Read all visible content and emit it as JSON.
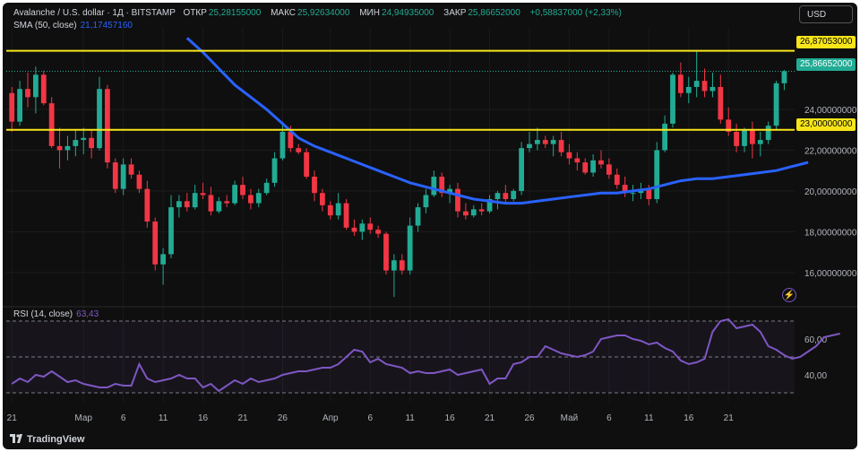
{
  "header": {
    "symbol": "Avalanche / U.S. dollar · 1Д · BITSTAMP",
    "open_label": "ОТКР",
    "open": "25,28155000",
    "high_label": "МАКС",
    "high": "25,92634000",
    "low_label": "МИН",
    "low": "24,94935000",
    "close_label": "ЗАКР",
    "close": "25,86652000",
    "change": "+0,58837000 (+2,33%)",
    "sma_label": "SMA (50, close)",
    "sma_value": "21,17457160"
  },
  "currency_button": "USD",
  "rsi_header": {
    "label": "RSI (14, close)",
    "value": "63,43"
  },
  "price_tags": {
    "level_high": "26,87053000",
    "last_price": "25,86652000",
    "level_low": "23,00000000"
  },
  "branding": "TradingView",
  "colors": {
    "up": "#22ab94",
    "down": "#f23645",
    "sma": "#2962ff",
    "rsi": "#7e57c2",
    "level": "#f7e51a",
    "bg": "#0f0f0f"
  },
  "chart_data": {
    "type": "candlestick",
    "symbol": "Avalanche / U.S. dollar",
    "interval": "1Д",
    "exchange": "BITSTAMP",
    "y_ticks": [
      "16,00000000",
      "18,00000000",
      "20,00000000",
      "22,00000000",
      "24,00000000"
    ],
    "ylim": [
      14.5,
      28
    ],
    "x_ticks": [
      {
        "label": "21",
        "day": 0
      },
      {
        "label": "Мар",
        "day": 9
      },
      {
        "label": "6",
        "day": 14
      },
      {
        "label": "11",
        "day": 19
      },
      {
        "label": "16",
        "day": 24
      },
      {
        "label": "21",
        "day": 29
      },
      {
        "label": "26",
        "day": 34
      },
      {
        "label": "Апр",
        "day": 40
      },
      {
        "label": "6",
        "day": 45
      },
      {
        "label": "11",
        "day": 50
      },
      {
        "label": "16",
        "day": 55
      },
      {
        "label": "21",
        "day": 60
      },
      {
        "label": "26",
        "day": 65
      },
      {
        "label": "Май",
        "day": 70
      },
      {
        "label": "6",
        "day": 75
      },
      {
        "label": "11",
        "day": 80
      },
      {
        "label": "16",
        "day": 85
      },
      {
        "label": "21",
        "day": 90
      }
    ],
    "horizontal_levels": [
      26.87053,
      23.0
    ],
    "candles": [
      {
        "o": 24.8,
        "h": 25.1,
        "l": 22.9,
        "c": 23.4
      },
      {
        "o": 23.4,
        "h": 25.4,
        "l": 23.2,
        "c": 25.0
      },
      {
        "o": 25.0,
        "h": 25.8,
        "l": 24.1,
        "c": 24.6
      },
      {
        "o": 24.6,
        "h": 26.1,
        "l": 23.8,
        "c": 25.7
      },
      {
        "o": 25.7,
        "h": 25.9,
        "l": 24.2,
        "c": 24.3
      },
      {
        "o": 24.3,
        "h": 24.6,
        "l": 22.1,
        "c": 22.2
      },
      {
        "o": 22.2,
        "h": 23.1,
        "l": 21.1,
        "c": 22.0
      },
      {
        "o": 22.0,
        "h": 22.7,
        "l": 21.5,
        "c": 22.2
      },
      {
        "o": 22.2,
        "h": 23.0,
        "l": 21.7,
        "c": 22.5
      },
      {
        "o": 22.5,
        "h": 23.1,
        "l": 21.8,
        "c": 22.6
      },
      {
        "o": 22.6,
        "h": 23.0,
        "l": 21.6,
        "c": 22.1
      },
      {
        "o": 22.1,
        "h": 25.6,
        "l": 22.0,
        "c": 25.0
      },
      {
        "o": 25.0,
        "h": 25.2,
        "l": 21.1,
        "c": 21.4
      },
      {
        "o": 21.4,
        "h": 21.6,
        "l": 19.9,
        "c": 20.1
      },
      {
        "o": 20.1,
        "h": 21.6,
        "l": 19.8,
        "c": 21.3
      },
      {
        "o": 21.3,
        "h": 21.6,
        "l": 20.6,
        "c": 20.8
      },
      {
        "o": 20.8,
        "h": 21.0,
        "l": 19.9,
        "c": 20.1
      },
      {
        "o": 20.1,
        "h": 20.5,
        "l": 18.2,
        "c": 18.5
      },
      {
        "o": 18.5,
        "h": 18.7,
        "l": 16.1,
        "c": 16.4
      },
      {
        "o": 16.4,
        "h": 17.2,
        "l": 15.4,
        "c": 16.9
      },
      {
        "o": 16.9,
        "h": 19.8,
        "l": 16.7,
        "c": 19.2
      },
      {
        "o": 19.2,
        "h": 19.8,
        "l": 18.7,
        "c": 19.5
      },
      {
        "o": 19.5,
        "h": 19.9,
        "l": 19.0,
        "c": 19.2
      },
      {
        "o": 19.2,
        "h": 20.3,
        "l": 19.1,
        "c": 19.9
      },
      {
        "o": 19.9,
        "h": 20.4,
        "l": 19.6,
        "c": 19.8
      },
      {
        "o": 19.8,
        "h": 20.2,
        "l": 18.8,
        "c": 19.0
      },
      {
        "o": 19.0,
        "h": 19.7,
        "l": 18.9,
        "c": 19.5
      },
      {
        "o": 19.5,
        "h": 19.8,
        "l": 19.2,
        "c": 19.4
      },
      {
        "o": 19.4,
        "h": 20.5,
        "l": 19.3,
        "c": 20.3
      },
      {
        "o": 20.3,
        "h": 20.7,
        "l": 19.6,
        "c": 19.8
      },
      {
        "o": 19.8,
        "h": 20.1,
        "l": 19.1,
        "c": 19.4
      },
      {
        "o": 19.4,
        "h": 20.1,
        "l": 19.2,
        "c": 19.9
      },
      {
        "o": 19.9,
        "h": 20.6,
        "l": 19.8,
        "c": 20.4
      },
      {
        "o": 20.4,
        "h": 21.9,
        "l": 20.2,
        "c": 21.6
      },
      {
        "o": 21.6,
        "h": 23.4,
        "l": 21.5,
        "c": 22.9
      },
      {
        "o": 22.9,
        "h": 23.2,
        "l": 21.9,
        "c": 22.1
      },
      {
        "o": 22.1,
        "h": 22.3,
        "l": 21.8,
        "c": 21.9
      },
      {
        "o": 21.9,
        "h": 22.1,
        "l": 20.6,
        "c": 20.7
      },
      {
        "o": 20.7,
        "h": 21.0,
        "l": 19.5,
        "c": 19.9
      },
      {
        "o": 19.9,
        "h": 20.1,
        "l": 19.0,
        "c": 19.3
      },
      {
        "o": 19.3,
        "h": 19.5,
        "l": 18.6,
        "c": 18.8
      },
      {
        "o": 18.8,
        "h": 19.9,
        "l": 18.6,
        "c": 19.4
      },
      {
        "o": 19.4,
        "h": 19.6,
        "l": 18.1,
        "c": 18.2
      },
      {
        "o": 18.2,
        "h": 18.6,
        "l": 17.8,
        "c": 18.0
      },
      {
        "o": 18.0,
        "h": 18.6,
        "l": 17.6,
        "c": 18.4
      },
      {
        "o": 18.4,
        "h": 18.7,
        "l": 17.9,
        "c": 18.1
      },
      {
        "o": 18.1,
        "h": 18.3,
        "l": 17.7,
        "c": 17.9
      },
      {
        "o": 17.9,
        "h": 18.0,
        "l": 15.9,
        "c": 16.1
      },
      {
        "o": 16.1,
        "h": 16.9,
        "l": 14.8,
        "c": 16.6
      },
      {
        "o": 16.6,
        "h": 16.9,
        "l": 15.9,
        "c": 16.1
      },
      {
        "o": 16.1,
        "h": 18.7,
        "l": 15.9,
        "c": 18.3
      },
      {
        "o": 18.3,
        "h": 19.4,
        "l": 18.0,
        "c": 19.2
      },
      {
        "o": 19.2,
        "h": 20.1,
        "l": 18.9,
        "c": 19.8
      },
      {
        "o": 19.8,
        "h": 21.0,
        "l": 19.7,
        "c": 20.7
      },
      {
        "o": 20.7,
        "h": 20.9,
        "l": 19.7,
        "c": 19.9
      },
      {
        "o": 19.9,
        "h": 20.3,
        "l": 19.4,
        "c": 20.1
      },
      {
        "o": 20.1,
        "h": 20.4,
        "l": 18.7,
        "c": 19.0
      },
      {
        "o": 19.0,
        "h": 19.4,
        "l": 18.6,
        "c": 18.8
      },
      {
        "o": 18.8,
        "h": 19.3,
        "l": 18.7,
        "c": 19.1
      },
      {
        "o": 19.1,
        "h": 19.4,
        "l": 18.8,
        "c": 19.0
      },
      {
        "o": 19.0,
        "h": 19.8,
        "l": 18.9,
        "c": 19.6
      },
      {
        "o": 19.6,
        "h": 20.0,
        "l": 19.1,
        "c": 19.9
      },
      {
        "o": 19.9,
        "h": 20.3,
        "l": 19.4,
        "c": 19.6
      },
      {
        "o": 19.6,
        "h": 20.1,
        "l": 19.5,
        "c": 20.0
      },
      {
        "o": 20.0,
        "h": 22.4,
        "l": 19.8,
        "c": 22.1
      },
      {
        "o": 22.1,
        "h": 22.9,
        "l": 21.9,
        "c": 22.3
      },
      {
        "o": 22.3,
        "h": 23.1,
        "l": 22.0,
        "c": 22.5
      },
      {
        "o": 22.5,
        "h": 22.7,
        "l": 22.1,
        "c": 22.3
      },
      {
        "o": 22.3,
        "h": 22.7,
        "l": 21.7,
        "c": 22.5
      },
      {
        "o": 22.5,
        "h": 22.9,
        "l": 21.7,
        "c": 21.9
      },
      {
        "o": 21.9,
        "h": 22.3,
        "l": 21.3,
        "c": 21.6
      },
      {
        "o": 21.6,
        "h": 21.9,
        "l": 21.0,
        "c": 21.4
      },
      {
        "o": 21.4,
        "h": 21.6,
        "l": 20.8,
        "c": 20.9
      },
      {
        "o": 20.9,
        "h": 21.8,
        "l": 20.7,
        "c": 21.5
      },
      {
        "o": 21.5,
        "h": 22.0,
        "l": 21.1,
        "c": 21.3
      },
      {
        "o": 21.3,
        "h": 21.6,
        "l": 20.6,
        "c": 20.8
      },
      {
        "o": 20.8,
        "h": 21.1,
        "l": 20.1,
        "c": 20.3
      },
      {
        "o": 20.3,
        "h": 20.7,
        "l": 19.7,
        "c": 19.9
      },
      {
        "o": 19.9,
        "h": 20.3,
        "l": 19.5,
        "c": 19.9
      },
      {
        "o": 19.9,
        "h": 20.4,
        "l": 19.6,
        "c": 20.1
      },
      {
        "o": 20.1,
        "h": 20.3,
        "l": 19.3,
        "c": 19.6
      },
      {
        "o": 19.6,
        "h": 22.4,
        "l": 19.4,
        "c": 22.0
      },
      {
        "o": 22.0,
        "h": 23.7,
        "l": 21.9,
        "c": 23.3
      },
      {
        "o": 23.3,
        "h": 25.8,
        "l": 23.1,
        "c": 25.7
      },
      {
        "o": 25.7,
        "h": 26.3,
        "l": 24.6,
        "c": 24.8
      },
      {
        "o": 24.8,
        "h": 25.6,
        "l": 24.3,
        "c": 25.1
      },
      {
        "o": 25.1,
        "h": 26.9,
        "l": 24.6,
        "c": 25.4
      },
      {
        "o": 25.4,
        "h": 26.0,
        "l": 24.6,
        "c": 24.9
      },
      {
        "o": 24.9,
        "h": 25.8,
        "l": 24.6,
        "c": 25.1
      },
      {
        "o": 25.1,
        "h": 25.7,
        "l": 23.3,
        "c": 23.5
      },
      {
        "o": 23.5,
        "h": 24.1,
        "l": 22.7,
        "c": 22.9
      },
      {
        "o": 22.9,
        "h": 23.3,
        "l": 21.9,
        "c": 22.2
      },
      {
        "o": 22.2,
        "h": 23.1,
        "l": 21.9,
        "c": 23.0
      },
      {
        "o": 23.0,
        "h": 23.4,
        "l": 21.6,
        "c": 22.3
      },
      {
        "o": 22.3,
        "h": 22.9,
        "l": 21.7,
        "c": 22.5
      },
      {
        "o": 22.5,
        "h": 23.4,
        "l": 22.3,
        "c": 23.2
      },
      {
        "o": 23.2,
        "h": 25.4,
        "l": 23.0,
        "c": 25.28
      },
      {
        "o": 25.28,
        "h": 25.93,
        "l": 24.95,
        "c": 25.87
      }
    ],
    "sma_50": [
      {
        "day": 22,
        "v": 27.5
      },
      {
        "day": 24,
        "v": 26.8
      },
      {
        "day": 26,
        "v": 26.0
      },
      {
        "day": 28,
        "v": 25.2
      },
      {
        "day": 30,
        "v": 24.6
      },
      {
        "day": 32,
        "v": 24.0
      },
      {
        "day": 34,
        "v": 23.3
      },
      {
        "day": 36,
        "v": 22.6
      },
      {
        "day": 38,
        "v": 22.2
      },
      {
        "day": 40,
        "v": 21.9
      },
      {
        "day": 42,
        "v": 21.6
      },
      {
        "day": 44,
        "v": 21.3
      },
      {
        "day": 46,
        "v": 21.0
      },
      {
        "day": 48,
        "v": 20.7
      },
      {
        "day": 50,
        "v": 20.4
      },
      {
        "day": 52,
        "v": 20.2
      },
      {
        "day": 54,
        "v": 20.0
      },
      {
        "day": 56,
        "v": 19.8
      },
      {
        "day": 58,
        "v": 19.6
      },
      {
        "day": 60,
        "v": 19.5
      },
      {
        "day": 62,
        "v": 19.4
      },
      {
        "day": 64,
        "v": 19.4
      },
      {
        "day": 66,
        "v": 19.5
      },
      {
        "day": 68,
        "v": 19.6
      },
      {
        "day": 70,
        "v": 19.7
      },
      {
        "day": 72,
        "v": 19.8
      },
      {
        "day": 74,
        "v": 19.9
      },
      {
        "day": 76,
        "v": 19.9
      },
      {
        "day": 78,
        "v": 20.0
      },
      {
        "day": 80,
        "v": 20.1
      },
      {
        "day": 82,
        "v": 20.3
      },
      {
        "day": 84,
        "v": 20.5
      },
      {
        "day": 86,
        "v": 20.6
      },
      {
        "day": 88,
        "v": 20.6
      },
      {
        "day": 90,
        "v": 20.7
      },
      {
        "day": 92,
        "v": 20.8
      },
      {
        "day": 94,
        "v": 20.9
      },
      {
        "day": 96,
        "v": 21.0
      },
      {
        "day": 98,
        "v": 21.2
      },
      {
        "day": 100,
        "v": 21.4
      }
    ],
    "rsi": {
      "ylim": [
        25,
        75
      ],
      "ticks": [
        "40,00",
        "60,00"
      ],
      "band_levels": [
        70,
        50,
        30
      ],
      "values": [
        35,
        38,
        36,
        40,
        39,
        42,
        39,
        36,
        37,
        35,
        34,
        33,
        33,
        35,
        34,
        34,
        46,
        38,
        36,
        37,
        38,
        40,
        38,
        38,
        33,
        35,
        31,
        34,
        37,
        35,
        38,
        36,
        37,
        38,
        40,
        41,
        42,
        42,
        43,
        44,
        44,
        46,
        50,
        54,
        53,
        47,
        49,
        46,
        45,
        44,
        41,
        42,
        41,
        41,
        42,
        43,
        40,
        41,
        42,
        43,
        35,
        38,
        38,
        46,
        47,
        50,
        50,
        56,
        54,
        52,
        51,
        50,
        51,
        53,
        60,
        61,
        62,
        62,
        60,
        59,
        57,
        58,
        55,
        53,
        48,
        46,
        47,
        49,
        64,
        70,
        71,
        66,
        67,
        68,
        64,
        56,
        54,
        51,
        49,
        50,
        53,
        56,
        61,
        62,
        63
      ]
    }
  }
}
